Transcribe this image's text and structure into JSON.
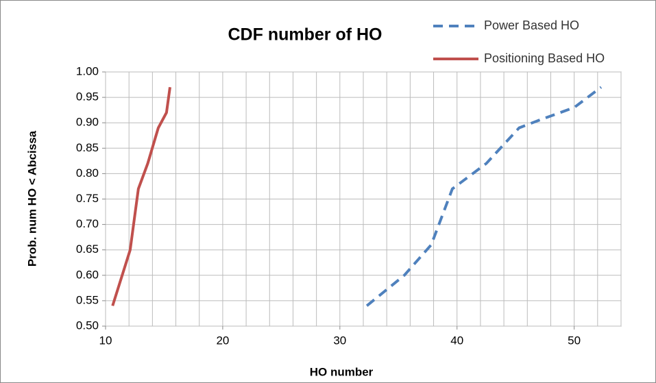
{
  "chart_data": {
    "type": "line",
    "title": "CDF number of HO",
    "x_label": "HO number",
    "y_label": "Prob. num HO < Abcissa",
    "xlim": [
      10,
      54
    ],
    "xticks": [
      10,
      20,
      30,
      40,
      50
    ],
    "xgrid_step": 2,
    "ylim": [
      0.5,
      1.0
    ],
    "yticks": [
      {
        "value": 0.5,
        "label": "0.50"
      },
      {
        "value": 0.55,
        "label": "0.55"
      },
      {
        "value": 0.6,
        "label": "0.60"
      },
      {
        "value": 0.65,
        "label": "0.65"
      },
      {
        "value": 0.7,
        "label": "0.70"
      },
      {
        "value": 0.75,
        "label": "0.75"
      },
      {
        "value": 0.8,
        "label": "0.80"
      },
      {
        "value": 0.85,
        "label": "0.85"
      },
      {
        "value": 0.9,
        "label": "0.90"
      },
      {
        "value": 0.95,
        "label": "0.95"
      },
      {
        "value": 1.0,
        "label": "1.00"
      }
    ],
    "grid": true,
    "legend": "top-right",
    "series": [
      {
        "name": "Power Based HO",
        "color": "#4f81bd",
        "dash": true,
        "x": [
          32.3,
          35.5,
          37.8,
          39.6,
          42.5,
          45.3,
          47,
          50,
          52.3
        ],
        "values": [
          0.54,
          0.6,
          0.66,
          0.77,
          0.82,
          0.89,
          0.905,
          0.93,
          0.97
        ]
      },
      {
        "name": "Positioning Based HO",
        "color": "#c0504d",
        "dash": false,
        "x": [
          10.6,
          12.1,
          12.8,
          13.6,
          14.5,
          15.2,
          15.5
        ],
        "values": [
          0.54,
          0.65,
          0.77,
          0.82,
          0.89,
          0.92,
          0.97
        ]
      }
    ]
  }
}
